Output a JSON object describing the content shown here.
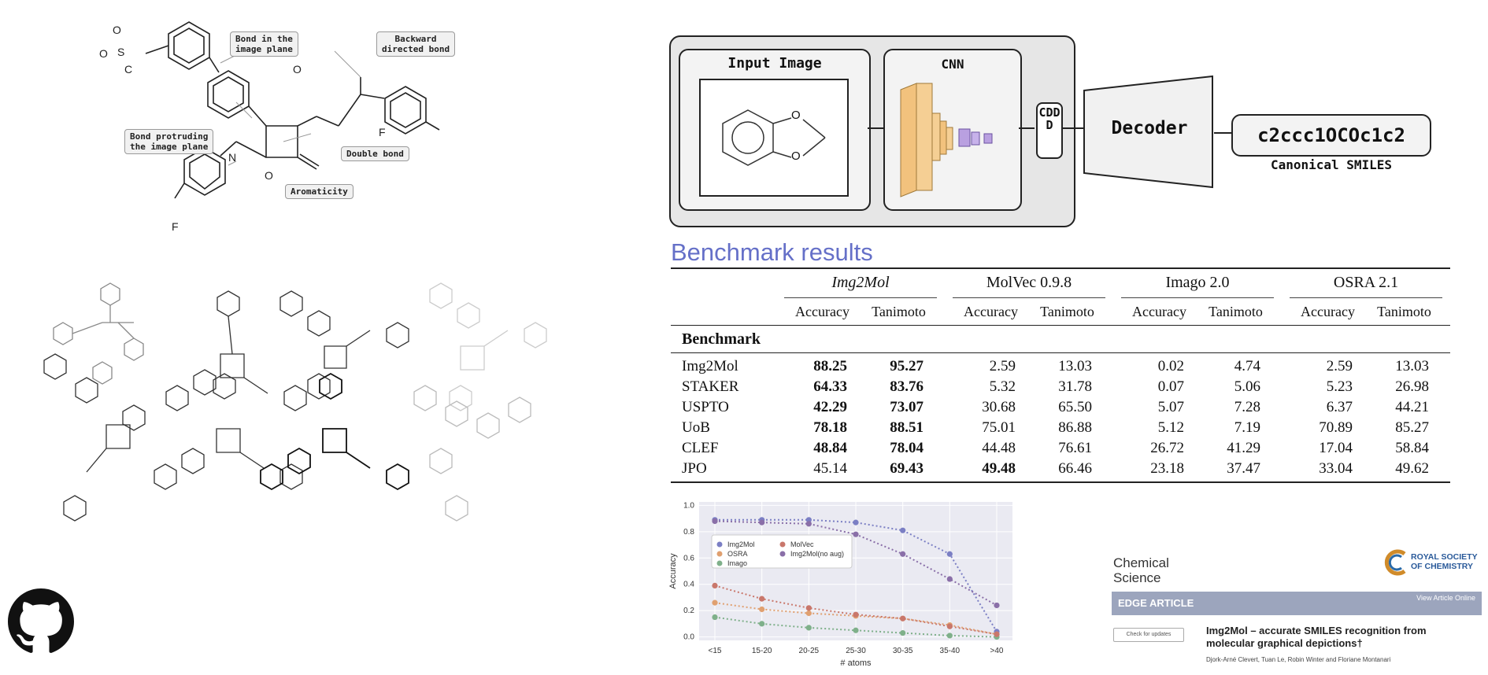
{
  "molecule_callouts": {
    "bond_in_plane": "Bond in the\nimage plane",
    "backward_bond": "Backward\ndirected bond",
    "bond_protruding": "Bond protruding\nthe image plane",
    "double_bond": "Double bond",
    "aromaticity": "Aromaticity"
  },
  "molecule_atoms": {
    "o1": "O",
    "o2": "O",
    "s": "S",
    "c": "C",
    "o_top": "O",
    "f_right": "F",
    "n": "N",
    "o_ring": "O",
    "f_bottom": "F"
  },
  "pipeline": {
    "input_label": "Input Image",
    "cnn_label": "CNN",
    "cddd_label": "CDDD",
    "decoder_label": "Decoder",
    "smiles_output": "c2ccc1OCOc1c2",
    "smiles_caption": "Canonical SMILES",
    "input_atoms": [
      "O",
      "O"
    ]
  },
  "benchmark": {
    "title": "Benchmark results",
    "tools": [
      "Img2Mol",
      "MolVec 0.9.8",
      "Imago 2.0",
      "OSRA 2.1"
    ],
    "subheaders": [
      "Accuracy",
      "Tanimoto",
      "Accuracy",
      "Tanimoto",
      "Accuracy",
      "Tanimoto",
      "Accuracy",
      "Tanimoto"
    ],
    "row_header": "Benchmark",
    "rows": [
      {
        "name": "Img2Mol",
        "values": [
          "88.25",
          "95.27",
          "2.59",
          "13.03",
          "0.02",
          "4.74",
          "2.59",
          "13.03"
        ],
        "bold": [
          0,
          1
        ]
      },
      {
        "name": "STAKER",
        "values": [
          "64.33",
          "83.76",
          "5.32",
          "31.78",
          "0.07",
          "5.06",
          "5.23",
          "26.98"
        ],
        "bold": [
          0,
          1
        ]
      },
      {
        "name": "USPTO",
        "values": [
          "42.29",
          "73.07",
          "30.68",
          "65.50",
          "5.07",
          "7.28",
          "6.37",
          "44.21"
        ],
        "bold": [
          0,
          1
        ]
      },
      {
        "name": "UoB",
        "values": [
          "78.18",
          "88.51",
          "75.01",
          "86.88",
          "5.12",
          "7.19",
          "70.89",
          "85.27"
        ],
        "bold": [
          0,
          1
        ]
      },
      {
        "name": "CLEF",
        "values": [
          "48.84",
          "78.04",
          "44.48",
          "76.61",
          "26.72",
          "41.29",
          "17.04",
          "58.84"
        ],
        "bold": [
          0,
          1
        ]
      },
      {
        "name": "JPO",
        "values": [
          "45.14",
          "69.43",
          "49.48",
          "66.46",
          "23.18",
          "37.47",
          "33.04",
          "49.62"
        ],
        "bold": [
          1,
          2
        ]
      }
    ]
  },
  "chart_data": {
    "type": "line",
    "categories": [
      "<15",
      "15-20",
      "20-25",
      "25-30",
      "30-35",
      "35-40",
      ">40"
    ],
    "xlabel": "# atoms",
    "ylabel": "Accuracy",
    "ylim": [
      0,
      1.0
    ],
    "yticks": [
      "0.0",
      "0.2",
      "0.4",
      "0.6",
      "0.8",
      "1.0"
    ],
    "legend_position": "upper-left",
    "grid": true,
    "series": [
      {
        "name": "Img2Mol",
        "color": "#7b7fc4",
        "values": [
          0.89,
          0.89,
          0.89,
          0.87,
          0.81,
          0.63,
          0.04
        ]
      },
      {
        "name": "OSRA",
        "color": "#e0a070",
        "values": [
          0.26,
          0.21,
          0.18,
          0.16,
          0.14,
          0.09,
          0.02
        ]
      },
      {
        "name": "Imago",
        "color": "#7fb08a",
        "values": [
          0.15,
          0.1,
          0.07,
          0.05,
          0.03,
          0.01,
          0.0
        ]
      },
      {
        "name": "MolVec",
        "color": "#c9776b",
        "values": [
          0.39,
          0.29,
          0.22,
          0.17,
          0.14,
          0.08,
          0.02
        ]
      },
      {
        "name": "Img2Mol(no aug)",
        "color": "#8a6fa8",
        "values": [
          0.88,
          0.87,
          0.86,
          0.78,
          0.63,
          0.44,
          0.24
        ]
      }
    ]
  },
  "paper": {
    "journal": "Chemical\nScience",
    "publisher": "ROYAL SOCIETY\nOF CHEMISTRY",
    "banner": "EDGE ARTICLE",
    "view_online": "View Article Online",
    "check_updates": "Check for updates",
    "title": "Img2Mol – accurate SMILES recognition from molecular graphical depictions†",
    "authors": "Djork-Arné Clevert, Tuan Le, Robin Winter and Floriane Montanari"
  },
  "github_icon": "github-icon"
}
